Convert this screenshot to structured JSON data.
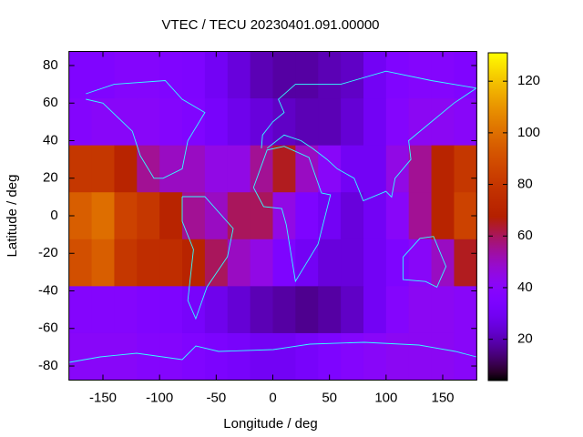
{
  "chart_data": {
    "type": "heatmap",
    "title": "VTEC / TECU 20230401.091.00000",
    "x_label": "Longitude / deg",
    "y_label": "Latitude / deg",
    "x": [
      -170,
      -150,
      -130,
      -110,
      -90,
      -70,
      -50,
      -30,
      -10,
      10,
      30,
      50,
      70,
      90,
      110,
      130,
      150,
      170
    ],
    "y": [
      75,
      50,
      25,
      0,
      -25,
      -50,
      -75
    ],
    "z": [
      [
        36,
        36,
        38,
        38,
        36,
        35,
        30,
        25,
        20,
        18,
        18,
        20,
        22,
        30,
        36,
        38,
        38,
        36
      ],
      [
        38,
        40,
        40,
        40,
        38,
        36,
        32,
        28,
        25,
        22,
        20,
        20,
        24,
        30,
        38,
        42,
        42,
        40
      ],
      [
        80,
        80,
        70,
        55,
        50,
        50,
        45,
        45,
        55,
        65,
        50,
        40,
        30,
        30,
        45,
        55,
        70,
        80
      ],
      [
        95,
        100,
        85,
        80,
        70,
        55,
        50,
        60,
        60,
        45,
        35,
        30,
        25,
        30,
        40,
        55,
        70,
        85
      ],
      [
        90,
        95,
        80,
        75,
        75,
        70,
        60,
        50,
        45,
        35,
        30,
        25,
        25,
        30,
        35,
        40,
        50,
        65
      ],
      [
        38,
        38,
        38,
        36,
        35,
        32,
        28,
        24,
        20,
        18,
        16,
        18,
        22,
        30,
        38,
        42,
        42,
        40
      ],
      [
        40,
        40,
        40,
        38,
        38,
        36,
        34,
        32,
        30,
        30,
        32,
        35,
        38,
        40,
        42,
        42,
        42,
        40
      ]
    ],
    "xlim": [
      -180,
      180
    ],
    "ylim": [
      -87.5,
      87.5
    ],
    "zlim": [
      4,
      131
    ],
    "xticks": [
      -150,
      -100,
      -50,
      0,
      50,
      100,
      150
    ],
    "yticks": [
      -80,
      -60,
      -40,
      -20,
      0,
      20,
      40,
      60,
      80
    ],
    "zticks": [
      20,
      40,
      60,
      80,
      100,
      120
    ]
  }
}
